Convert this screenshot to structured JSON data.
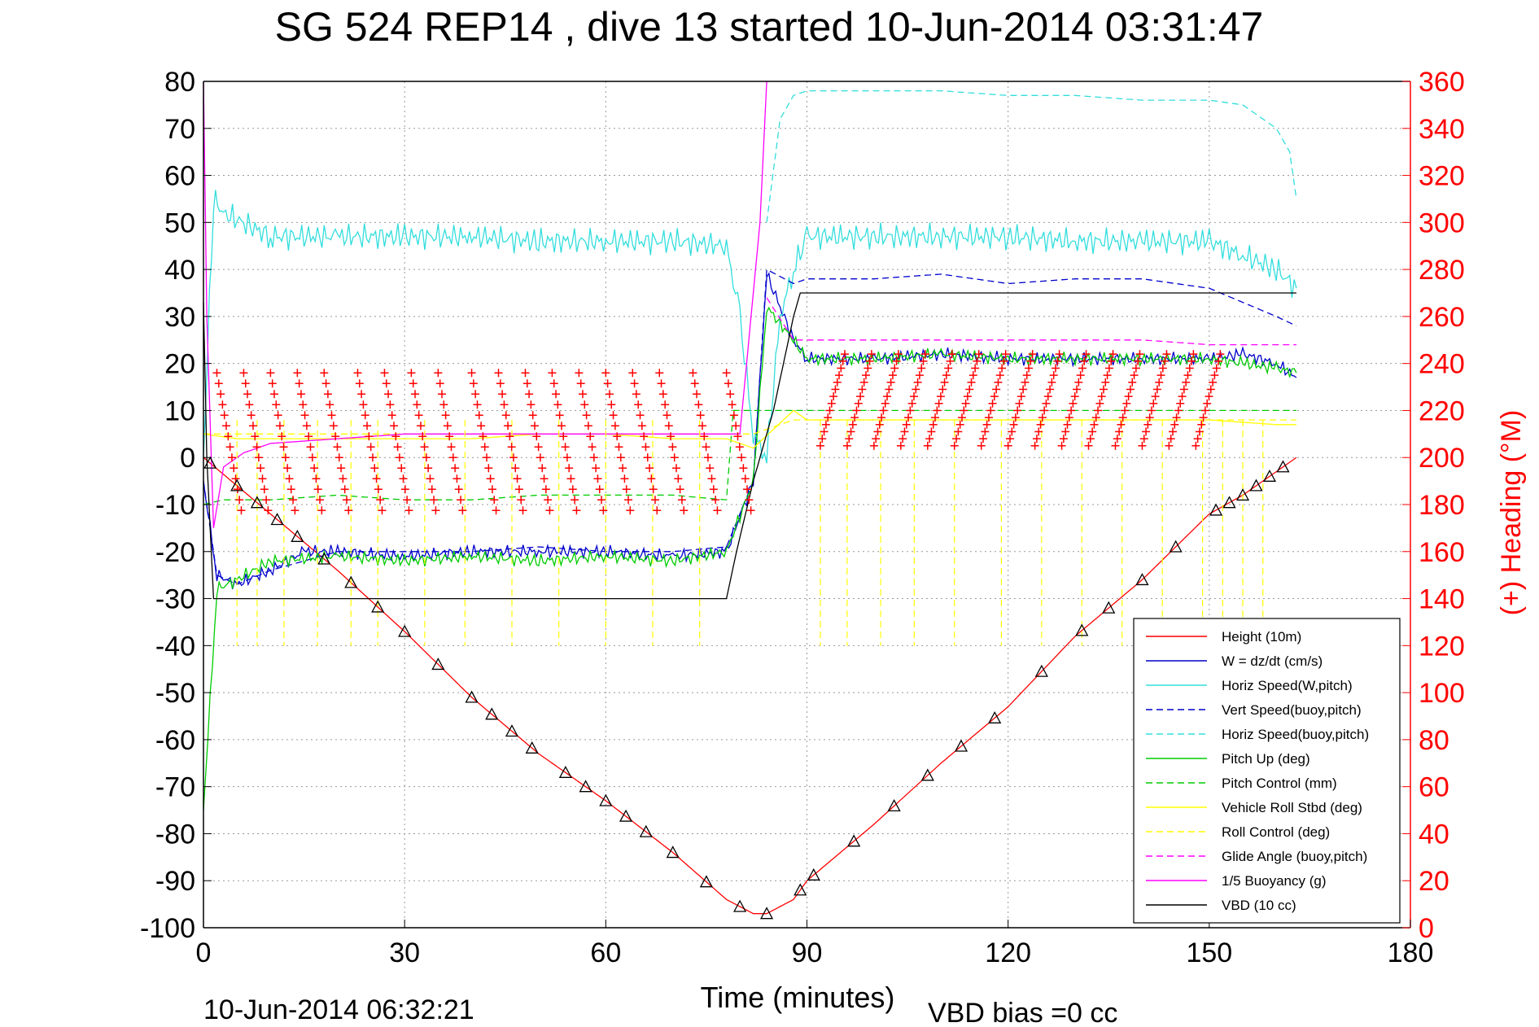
{
  "chart_data": {
    "type": "line",
    "title": "SG 524   REP14  , dive 13 started 10-Jun-2014 03:31:47",
    "xlabel": "Time (minutes)",
    "ylabel": "",
    "y2label": "(+) Heading (°M)",
    "xlim": [
      0,
      180
    ],
    "ylim": [
      -100,
      80
    ],
    "y2lim": [
      0,
      360
    ],
    "xticks": [
      0,
      30,
      60,
      90,
      120,
      150,
      180
    ],
    "yticks": [
      -100,
      -90,
      -80,
      -70,
      -60,
      -50,
      -40,
      -30,
      -20,
      -10,
      0,
      10,
      20,
      30,
      40,
      50,
      60,
      70,
      80
    ],
    "y2ticks": [
      0,
      20,
      40,
      60,
      80,
      100,
      120,
      140,
      160,
      180,
      200,
      220,
      240,
      260,
      280,
      300,
      320,
      340,
      360
    ],
    "grid": true,
    "legend_position": "bottom-right",
    "footer_left": "10-Jun-2014 06:32:21",
    "footer_right": "VBD bias =0 cc",
    "colors": {
      "red": "#ff0000",
      "blue": "#0000cc",
      "cyan": "#33dddd",
      "green": "#00cc00",
      "yellow": "#ffff00",
      "magenta": "#ff00ff",
      "black": "#000000"
    },
    "series": [
      {
        "name": "Height (10m)",
        "color": "#ff0000",
        "style": "solid",
        "x": [
          0,
          5,
          10,
          20,
          30,
          40,
          50,
          60,
          70,
          78,
          82,
          84,
          88,
          90,
          100,
          110,
          120,
          130,
          140,
          150,
          155,
          160,
          163
        ],
        "y": [
          0,
          -6,
          -12,
          -24,
          -37,
          -51,
          -63,
          -73,
          -84,
          -94,
          -97,
          -97,
          -94,
          -90,
          -78,
          -65,
          -53,
          -38,
          -26,
          -12,
          -8,
          -3,
          0
        ]
      },
      {
        "name": "W = dz/dt (cm/s)",
        "color": "#0000cc",
        "style": "solid",
        "x": [
          0,
          2,
          5,
          10,
          15,
          20,
          30,
          40,
          50,
          60,
          70,
          78,
          82,
          84,
          88,
          90,
          100,
          110,
          120,
          130,
          140,
          150,
          155,
          160,
          163
        ],
        "y": [
          -5,
          -25,
          -27,
          -24,
          -20,
          -20,
          -21,
          -20,
          -20,
          -20,
          -21,
          -20,
          -5,
          39,
          25,
          21,
          21,
          22,
          21,
          21,
          21,
          21,
          22,
          20,
          17
        ]
      },
      {
        "name": "Horiz Speed(W,pitch)",
        "color": "#33dddd",
        "style": "solid",
        "x": [
          0,
          1.5,
          3,
          10,
          20,
          30,
          40,
          50,
          60,
          70,
          78,
          80,
          82,
          84,
          86,
          88,
          90,
          100,
          110,
          120,
          130,
          140,
          150,
          155,
          160,
          163
        ],
        "y": [
          0,
          55,
          52,
          47,
          47,
          47,
          47,
          46,
          46,
          46,
          45,
          30,
          5,
          0,
          30,
          40,
          47,
          47,
          47,
          47,
          46,
          46,
          46,
          43,
          40,
          36
        ]
      },
      {
        "name": "Vert Speed(buoy,pitch)",
        "color": "#0000cc",
        "style": "dashed",
        "x": [
          0,
          2,
          5,
          10,
          20,
          30,
          40,
          50,
          60,
          70,
          78,
          82,
          84,
          88,
          90,
          100,
          110,
          120,
          130,
          140,
          150,
          155,
          160,
          163
        ],
        "y": [
          -5,
          -25,
          -27,
          -24,
          -20,
          -20,
          -20,
          -19,
          -20,
          -20,
          -19,
          -5,
          40,
          37,
          38,
          38,
          39,
          37,
          38,
          38,
          36,
          33,
          30,
          28
        ]
      },
      {
        "name": "Horiz Speed(buoy,pitch)",
        "color": "#33dddd",
        "style": "dashed",
        "x": [
          84,
          86,
          88,
          90,
          100,
          110,
          120,
          130,
          140,
          150,
          155,
          160,
          162,
          163
        ],
        "y": [
          50,
          72,
          77,
          78,
          78,
          78,
          77,
          77,
          76,
          76,
          75,
          70,
          65,
          55
        ]
      },
      {
        "name": "Pitch Up (deg)",
        "color": "#00cc00",
        "style": "solid",
        "x": [
          0,
          2,
          5,
          10,
          20,
          30,
          40,
          50,
          60,
          70,
          78,
          82,
          84,
          88,
          90,
          100,
          110,
          120,
          130,
          140,
          150,
          155,
          160,
          163
        ],
        "y": [
          -75,
          -28,
          -26,
          -22,
          -21,
          -22,
          -21,
          -22,
          -21,
          -22,
          -20,
          -5,
          32,
          25,
          21,
          21,
          22,
          21,
          21,
          21,
          21,
          20,
          19,
          18
        ]
      },
      {
        "name": "Pitch Control (mm)",
        "color": "#00cc00",
        "style": "dashed",
        "x": [
          0,
          3,
          10,
          20,
          30,
          40,
          50,
          60,
          70,
          78,
          79,
          90,
          100,
          110,
          120,
          130,
          140,
          150,
          160,
          163
        ],
        "y": [
          -10,
          -9,
          -9,
          -8,
          -9,
          -9,
          -8,
          -8,
          -8,
          -9,
          10,
          10,
          10,
          10,
          10,
          10,
          10,
          10,
          10,
          10
        ]
      },
      {
        "name": "Vehicle Roll Stbd (deg)",
        "color": "#ffff00",
        "style": "solid",
        "x": [
          0,
          5,
          10,
          20,
          30,
          40,
          50,
          60,
          70,
          78,
          82,
          88,
          90,
          100,
          110,
          120,
          130,
          140,
          150,
          160,
          163
        ],
        "y": [
          5,
          4,
          4,
          4,
          4,
          4,
          5,
          5,
          4,
          4,
          2,
          10,
          8,
          8,
          8,
          8,
          8,
          8,
          8,
          7,
          7
        ]
      },
      {
        "name": "Roll Control (deg)",
        "color": "#ffff00",
        "style": "dashed",
        "x": [
          0,
          5,
          10,
          20,
          30,
          40,
          50,
          60,
          70,
          78,
          82,
          88,
          90,
          100,
          110,
          120,
          130,
          140,
          150,
          160,
          163
        ],
        "y": [
          5,
          5,
          5,
          5,
          5,
          5,
          5,
          5,
          5,
          5,
          5,
          8,
          8,
          8,
          8,
          8,
          8,
          8,
          8,
          8,
          8
        ]
      },
      {
        "name": "Glide Angle (buoy,pitch)",
        "color": "#ff00ff",
        "style": "dashed",
        "x": [
          84,
          88,
          90,
          100,
          110,
          120,
          130,
          140,
          150,
          155,
          160,
          163
        ],
        "y": [
          34,
          25,
          25,
          25,
          25,
          25,
          25,
          25,
          24,
          24,
          24,
          24
        ]
      },
      {
        "name": "1/5 Buoyancy (g)",
        "color": "#ff00ff",
        "style": "solid",
        "x": [
          0,
          0.5,
          1.5,
          3,
          6,
          10,
          20,
          30,
          40,
          50,
          60,
          70,
          78,
          80,
          83,
          84
        ],
        "y": [
          80,
          30,
          -15,
          -2,
          1,
          3,
          4,
          5,
          5,
          5,
          5,
          5,
          5,
          5,
          50,
          80
        ]
      },
      {
        "name": "VBD (10 cc)",
        "color": "#000000",
        "style": "solid",
        "x": [
          0,
          0.5,
          1,
          1.5,
          2,
          10,
          20,
          30,
          40,
          50,
          60,
          70,
          78,
          79.5,
          82,
          85,
          88,
          89,
          100,
          110,
          120,
          130,
          140,
          150,
          160,
          163
        ],
        "y": [
          33,
          0,
          -15,
          -30,
          -30,
          -30,
          -30,
          -30,
          -30,
          -30,
          -30,
          -30,
          -30,
          -20,
          -5,
          10,
          30,
          35,
          35,
          35,
          35,
          35,
          35,
          35,
          35,
          35
        ]
      }
    ],
    "heading_marker_color": "#ff0000",
    "heading_note": "red + markers plotted on right axis (Heading, deg M)",
    "depth_marker_shape": "triangle"
  }
}
